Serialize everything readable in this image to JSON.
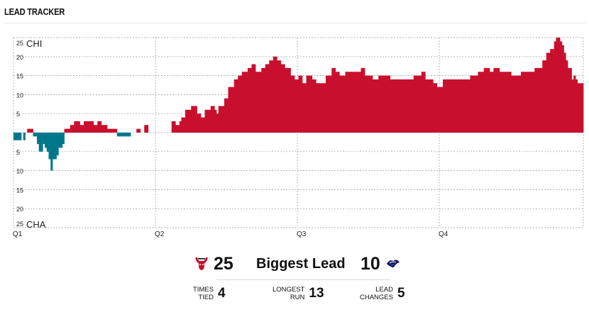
{
  "header": {
    "title": "LEAD TRACKER"
  },
  "chart_data": {
    "type": "bar",
    "title": "LEAD TRACKER",
    "xlabel": "",
    "ylabel": "",
    "x_tick_labels": [
      "Q1",
      "Q2",
      "Q3",
      "Q4"
    ],
    "y_tick_labels": [
      "25",
      "20",
      "15",
      "10",
      "5",
      "",
      "5",
      "10",
      "15",
      "20",
      "25"
    ],
    "ylim": [
      -25,
      25
    ],
    "grid": true,
    "team_labels": {
      "top": "CHI",
      "bottom": "CHA"
    },
    "colors": {
      "CHI": "#c8102e",
      "CHA": "#00788c",
      "grid": "#9a9a9a"
    },
    "series": [
      {
        "name": "Lead",
        "values": [
          -2,
          -2,
          -2,
          -2,
          0,
          -2,
          0,
          1,
          1,
          1,
          -1,
          -1,
          -3,
          -5,
          -5,
          -3,
          -4,
          -5,
          -7,
          -10,
          -7,
          -7,
          -6,
          -4,
          -4,
          -3,
          1,
          1,
          1,
          2,
          2,
          3,
          3,
          3,
          2,
          2,
          3,
          3,
          3,
          3,
          3,
          2,
          2,
          3,
          3,
          2,
          2,
          2,
          1,
          1,
          1,
          1,
          1,
          -1,
          -1,
          -1,
          -1,
          -1,
          -1,
          -1,
          0,
          0,
          0,
          1,
          1,
          0,
          0,
          2,
          2,
          0,
          0,
          0,
          0,
          0,
          0,
          0,
          0,
          0,
          0,
          0,
          0,
          3,
          3,
          2,
          2,
          3,
          4,
          4,
          6,
          6,
          6,
          7,
          7,
          7,
          5,
          5,
          4,
          4,
          6,
          6,
          6,
          7,
          7,
          6,
          5,
          7,
          7,
          7,
          9,
          9,
          12,
          12,
          12,
          14,
          14,
          15,
          15,
          16,
          16,
          16,
          17,
          17,
          18,
          18,
          16,
          16,
          16,
          17,
          17,
          18,
          18,
          19,
          19,
          20,
          20,
          19,
          19,
          18,
          18,
          17,
          17,
          17,
          15,
          15,
          14,
          14,
          15,
          15,
          13,
          13,
          15,
          15,
          15,
          14,
          14,
          13,
          13,
          13,
          13,
          13,
          15,
          15,
          15,
          17,
          17,
          16,
          16,
          15,
          15,
          15,
          16,
          16,
          16,
          16,
          16,
          16,
          16,
          16,
          17,
          17,
          15,
          15,
          15,
          15,
          14,
          14,
          14,
          15,
          15,
          15,
          15,
          15,
          15,
          14,
          14,
          14,
          14,
          14,
          14,
          14,
          14,
          14,
          14,
          14,
          14,
          15,
          15,
          15,
          15,
          16,
          16,
          14,
          14,
          14,
          14,
          13,
          13,
          12,
          12,
          12,
          14,
          14,
          14,
          14,
          14,
          14,
          14,
          14,
          14,
          14,
          14,
          14,
          14,
          14,
          15,
          15,
          15,
          15,
          16,
          16,
          16,
          17,
          17,
          17,
          16,
          16,
          17,
          17,
          17,
          16,
          16,
          16,
          16,
          16,
          16,
          15,
          15,
          15,
          15,
          15,
          16,
          16,
          16,
          16,
          16,
          16,
          16,
          17,
          17,
          17,
          17,
          19,
          19,
          21,
          21,
          22,
          22,
          24,
          25,
          25,
          24,
          23,
          21,
          19,
          17,
          17,
          14,
          15,
          14,
          13,
          13,
          13
        ]
      }
    ]
  },
  "stats": {
    "home_biggest_lead": "25",
    "biggest_lead_label": "Biggest Lead",
    "away_biggest_lead": "10",
    "times_tied_label": "TIMES TIED",
    "times_tied_line1": "TIMES",
    "times_tied_line2": "TIED",
    "times_tied": "4",
    "longest_run_line1": "LONGEST",
    "longest_run_line2": "RUN",
    "longest_run": "13",
    "lead_changes_line1": "LEAD",
    "lead_changes_line2": "CHANGES",
    "lead_changes": "5"
  },
  "icons": {
    "home_logo": "bulls-logo-icon",
    "away_logo": "hornets-logo-icon"
  }
}
